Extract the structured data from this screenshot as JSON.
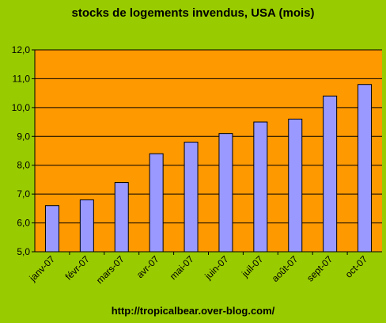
{
  "chart_data": {
    "type": "bar",
    "title": "stocks de logements invendus, USA (mois)",
    "footer": "http://tropicalbear.over-blog.com/",
    "categories": [
      "janv-07",
      "févr-07",
      "mars-07",
      "avr-07",
      "mai-07",
      "juin-07",
      "juil-07",
      "août-07",
      "sept-07",
      "oct-07"
    ],
    "values": [
      6.6,
      6.8,
      7.4,
      8.4,
      8.8,
      9.1,
      9.5,
      9.6,
      10.4,
      10.8
    ],
    "ylim": [
      5.0,
      12.0
    ],
    "yticks": [
      "5,0",
      "6,0",
      "7,0",
      "8,0",
      "9,0",
      "10,0",
      "11,0",
      "12,0"
    ],
    "xlabel": "",
    "ylabel": "",
    "grid": true,
    "colors": {
      "background": "#99CC00",
      "plot_area": "#FF9900",
      "bar_fill": "#9999FF",
      "bar_stroke": "#000000",
      "gridline": "#000000"
    }
  }
}
